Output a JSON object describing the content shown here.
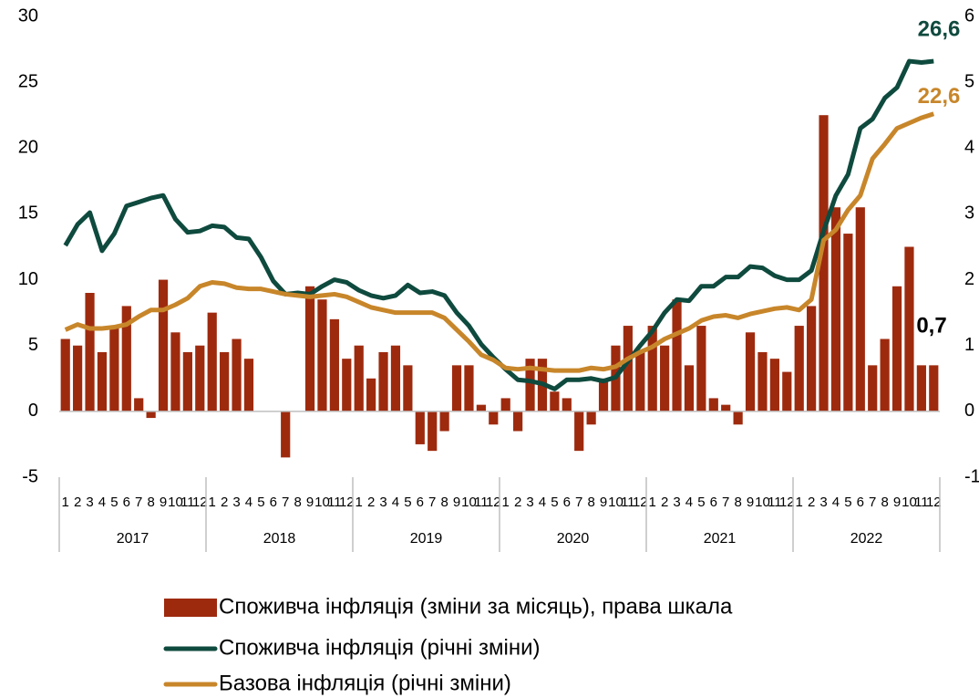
{
  "chart_data": {
    "type": "bar-line",
    "categories": [
      "1",
      "2",
      "3",
      "4",
      "5",
      "6",
      "7",
      "8",
      "9",
      "10",
      "11",
      "12",
      "1",
      "2",
      "3",
      "4",
      "5",
      "6",
      "7",
      "8",
      "9",
      "10",
      "11",
      "12",
      "1",
      "2",
      "3",
      "4",
      "5",
      "6",
      "7",
      "8",
      "9",
      "10",
      "11",
      "12",
      "1",
      "2",
      "3",
      "4",
      "5",
      "6",
      "7",
      "8",
      "9",
      "10",
      "11",
      "12",
      "1",
      "2",
      "3",
      "4",
      "5",
      "6",
      "7",
      "8",
      "9",
      "10",
      "11",
      "12",
      "1",
      "2",
      "3",
      "4",
      "5",
      "6",
      "7",
      "8",
      "9",
      "10",
      "11",
      "12"
    ],
    "years": [
      "2017",
      "2018",
      "2019",
      "2020",
      "2021",
      "2022"
    ],
    "ylim": [
      -5,
      30
    ],
    "yticks": [
      -5,
      0,
      5,
      10,
      15,
      20,
      25,
      30
    ],
    "y2lim": [
      -1,
      6
    ],
    "y2ticks": [
      -1,
      0,
      1,
      2,
      3,
      4,
      5,
      6
    ],
    "series": [
      {
        "name": "Споживча інфляція (зміни за місяць), права шкала",
        "type": "bar",
        "axis": "y2",
        "color": "#9e2a0e",
        "values": [
          1.1,
          1.0,
          1.8,
          0.9,
          1.3,
          1.6,
          0.2,
          -0.1,
          2.0,
          1.2,
          0.9,
          1.0,
          1.5,
          0.9,
          1.1,
          0.8,
          0.0,
          0.0,
          -0.7,
          0.0,
          1.9,
          1.7,
          1.4,
          0.8,
          1.0,
          0.5,
          0.9,
          1.0,
          0.7,
          -0.5,
          -0.6,
          -0.3,
          0.7,
          0.7,
          0.1,
          -0.2,
          0.2,
          -0.3,
          0.8,
          0.8,
          0.3,
          0.2,
          -0.6,
          -0.2,
          0.5,
          1.0,
          1.3,
          0.9,
          1.3,
          1.0,
          1.7,
          0.7,
          1.3,
          0.2,
          0.1,
          -0.2,
          1.2,
          0.9,
          0.8,
          0.6,
          1.3,
          1.6,
          4.5,
          3.1,
          2.7,
          3.1,
          0.7,
          1.1,
          1.9,
          2.5,
          0.7,
          0.7
        ],
        "annotation": "0,7"
      },
      {
        "name": "Споживча інфляція (річні зміни)",
        "type": "line",
        "color": "#0f4a3e",
        "values": [
          12.6,
          14.2,
          15.1,
          12.2,
          13.5,
          15.6,
          15.9,
          16.2,
          16.4,
          14.6,
          13.6,
          13.7,
          14.1,
          14.0,
          13.2,
          13.1,
          11.7,
          9.9,
          8.9,
          9.0,
          8.9,
          9.5,
          10.0,
          9.8,
          9.2,
          8.8,
          8.6,
          8.8,
          9.6,
          9.0,
          9.1,
          8.8,
          7.5,
          6.5,
          5.1,
          4.1,
          3.2,
          2.4,
          2.3,
          2.1,
          1.7,
          2.4,
          2.4,
          2.5,
          2.3,
          2.6,
          3.8,
          5.0,
          6.1,
          7.5,
          8.5,
          8.4,
          9.5,
          9.5,
          10.2,
          10.2,
          11.0,
          10.9,
          10.3,
          10.0,
          10.0,
          10.7,
          13.7,
          16.4,
          18.0,
          21.5,
          22.2,
          23.8,
          24.6,
          26.6,
          26.5,
          26.6
        ],
        "annotation": "26,6"
      },
      {
        "name": "Базова інфляція (річні зміни)",
        "type": "line",
        "color": "#c8862a",
        "values": [
          6.2,
          6.6,
          6.3,
          6.3,
          6.4,
          6.6,
          7.2,
          7.7,
          7.7,
          8.1,
          8.6,
          9.5,
          9.8,
          9.7,
          9.4,
          9.3,
          9.3,
          9.1,
          8.9,
          8.8,
          8.7,
          8.8,
          8.9,
          8.7,
          8.3,
          7.9,
          7.7,
          7.5,
          7.5,
          7.5,
          7.5,
          7.1,
          6.2,
          5.3,
          4.3,
          3.9,
          3.3,
          3.2,
          3.3,
          3.2,
          3.1,
          3.1,
          3.1,
          3.3,
          3.2,
          3.4,
          4.0,
          4.5,
          4.9,
          5.5,
          5.9,
          6.3,
          6.9,
          7.2,
          7.3,
          7.1,
          7.4,
          7.6,
          7.8,
          7.9,
          7.7,
          8.5,
          13.0,
          13.8,
          15.3,
          16.4,
          19.2,
          20.3,
          21.5,
          21.9,
          22.3,
          22.6
        ],
        "annotation": "22,6"
      }
    ]
  }
}
